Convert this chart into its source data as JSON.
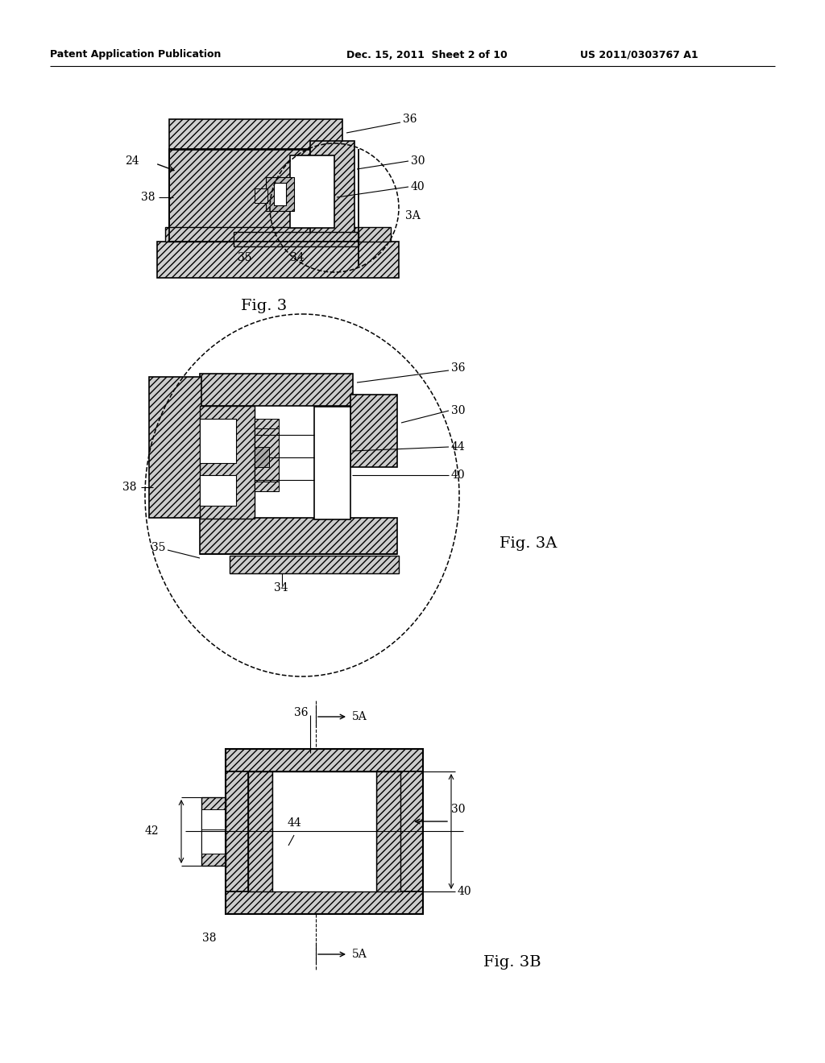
{
  "bg_color": "#ffffff",
  "header_left": "Patent Application Publication",
  "header_center": "Dec. 15, 2011  Sheet 2 of 10",
  "header_right": "US 2011/0303767 A1",
  "fig3_label": "Fig. 3",
  "fig3a_label": "Fig. 3A",
  "fig3b_label": "Fig. 3B",
  "line_color": "#000000",
  "hatch_pattern": "////",
  "line_width": 1.3
}
